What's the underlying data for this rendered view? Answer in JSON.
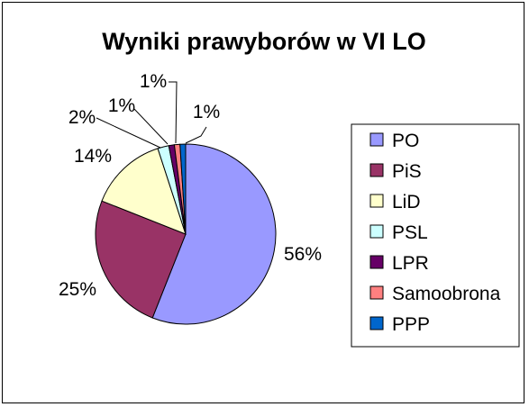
{
  "chart_data": {
    "type": "pie",
    "title": "Wyniki prawyborów w VI LO",
    "categories": [
      "PO",
      "PiS",
      "LiD",
      "PSL",
      "LPR",
      "Samoobrona",
      "PPP"
    ],
    "values": [
      56,
      25,
      14,
      2,
      1,
      1,
      1
    ],
    "data_labels": [
      "56%",
      "25%",
      "14%",
      "2%",
      "1%",
      "1%",
      "1%"
    ],
    "colors": [
      "#9999ff",
      "#993366",
      "#ffffcc",
      "#ccffff",
      "#660066",
      "#ff8080",
      "#0066cc"
    ],
    "legend_position": "right",
    "grid": false
  }
}
